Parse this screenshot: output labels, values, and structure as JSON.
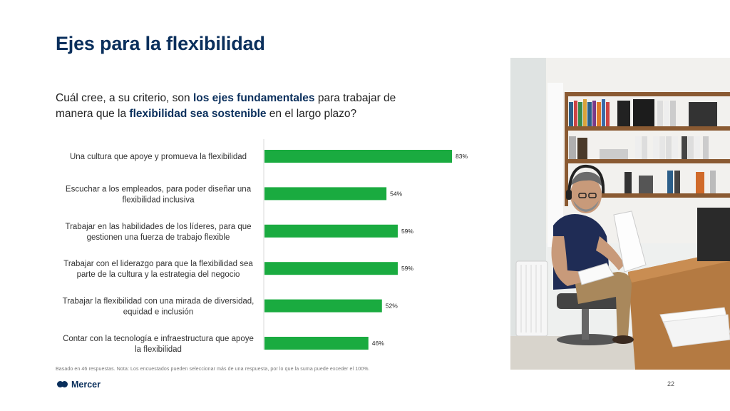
{
  "slide": {
    "title": "Ejes para la flexibilidad",
    "question": {
      "parts": [
        {
          "text": "Cuál cree,  a su criterio, son ",
          "bold": false
        },
        {
          "text": "los ejes fundamentales",
          "bold": true
        },
        {
          "text": "  para trabajar de manera que la ",
          "bold": false
        },
        {
          "text": "flexibilidad sea sostenible",
          "bold": true
        },
        {
          "text": "  en el largo plazo?",
          "bold": false
        }
      ]
    },
    "footnote": "Basado en  46 respuestas. Nota: Los encuestados pueden seleccionar más de una respuesta, por lo que la suma puede exceder el 100%.",
    "logo_text": "Mercer",
    "page_number": "22"
  },
  "colors": {
    "bar": "#1aab40",
    "title": "#0a2f5c"
  },
  "chart_data": {
    "type": "bar",
    "orientation": "horizontal",
    "categories": [
      [
        "Una cultura que apoye y promueva la flexibilidad"
      ],
      [
        "Escuchar a los empleados, para poder diseñar una",
        "flexibilidad inclusiva"
      ],
      [
        "Trabajar en las habilidades de los líderes, para que",
        "gestionen una fuerza de trabajo flexible"
      ],
      [
        "Trabajar con el liderazgo para que la flexibilidad sea",
        "parte de la cultura y la estrategia del negocio"
      ],
      [
        "Trabajar la flexibilidad con una mirada de diversidad,",
        "equidad e inclusión"
      ],
      [
        "Contar con la tecnología e infraestructura que apoye",
        "la flexibilidad"
      ]
    ],
    "values": [
      83,
      54,
      59,
      59,
      52,
      46
    ],
    "value_labels": [
      "83%",
      "54%",
      "59%",
      "59%",
      "52%",
      "46%"
    ],
    "xlim": [
      0,
      100
    ],
    "grid": false,
    "legend": false
  }
}
